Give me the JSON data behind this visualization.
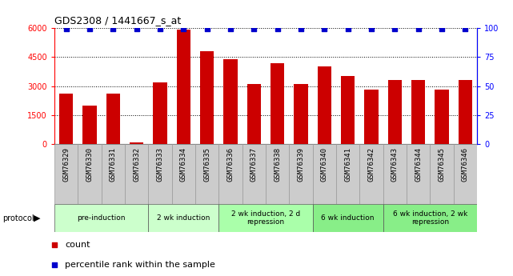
{
  "title": "GDS2308 / 1441667_s_at",
  "samples": [
    "GSM76329",
    "GSM76330",
    "GSM76331",
    "GSM76332",
    "GSM76333",
    "GSM76334",
    "GSM76335",
    "GSM76336",
    "GSM76337",
    "GSM76338",
    "GSM76339",
    "GSM76340",
    "GSM76341",
    "GSM76342",
    "GSM76343",
    "GSM76344",
    "GSM76345",
    "GSM76346"
  ],
  "counts": [
    2600,
    2000,
    2600,
    100,
    3200,
    5900,
    4800,
    4400,
    3100,
    4200,
    3100,
    4000,
    3500,
    2800,
    3300,
    3300,
    2800,
    3300
  ],
  "percentiles": [
    99,
    99,
    99,
    99,
    99,
    99,
    99,
    99,
    99,
    99,
    99,
    99,
    99,
    99,
    99,
    99,
    99,
    99
  ],
  "bar_color": "#cc0000",
  "dot_color": "#0000cc",
  "ylim_left": [
    0,
    6000
  ],
  "ylim_right": [
    0,
    100
  ],
  "yticks_left": [
    0,
    1500,
    3000,
    4500,
    6000
  ],
  "yticks_right": [
    0,
    25,
    50,
    75,
    100
  ],
  "protocols": [
    {
      "label": "pre-induction",
      "start": 0,
      "end": 4,
      "color": "#ccffcc"
    },
    {
      "label": "2 wk induction",
      "start": 4,
      "end": 7,
      "color": "#ccffcc"
    },
    {
      "label": "2 wk induction, 2 d\nrepression",
      "start": 7,
      "end": 11,
      "color": "#aaffaa"
    },
    {
      "label": "6 wk induction",
      "start": 11,
      "end": 14,
      "color": "#88ee88"
    },
    {
      "label": "6 wk induction, 2 wk\nrepression",
      "start": 14,
      "end": 18,
      "color": "#88ee88"
    }
  ],
  "bg_color": "#ffffff",
  "tick_area_color": "#cccccc"
}
